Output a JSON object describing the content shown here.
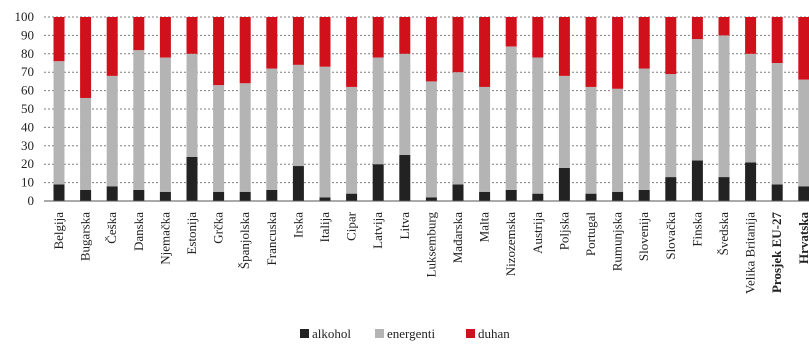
{
  "colors": {
    "alkohol": "#222222",
    "energenti": "#b4b4b4",
    "duhan": "#d0101a",
    "grid": "#7f7f7f"
  },
  "chart_data": {
    "type": "bar",
    "stacked": true,
    "title": "",
    "xlabel": "",
    "ylabel": "",
    "ylim": [
      0,
      100
    ],
    "yticks": [
      0,
      10,
      20,
      30,
      40,
      50,
      60,
      70,
      80,
      90,
      100
    ],
    "grid": true,
    "legend_position": "bottom",
    "categories": [
      "Belgija",
      "Bugarska",
      "Češka",
      "Danska",
      "Njemačka",
      "Estonija",
      "Grčka",
      "Španjolska",
      "Francuska",
      "Irska",
      "Italija",
      "Cipar",
      "Latvija",
      "Litva",
      "Luksemburg",
      "Mađarska",
      "Malta",
      "Nizozemska",
      "Austrija",
      "Poljska",
      "Portugal",
      "Rumunjska",
      "Slovenija",
      "Slovačka",
      "Finska",
      "Švedska",
      "Velika Britanija",
      "Prosjek EU-27",
      "Hrvatska"
    ],
    "bold_categories": [
      "Prosjek EU-27",
      "Hrvatska"
    ],
    "series": [
      {
        "name": "alkohol",
        "values": [
          9,
          6,
          8,
          6,
          5,
          24,
          5,
          5,
          6,
          19,
          2,
          4,
          20,
          25,
          2,
          9,
          5,
          6,
          4,
          18,
          4,
          5,
          6,
          13,
          22,
          13,
          21,
          9,
          8
        ]
      },
      {
        "name": "energenti",
        "values": [
          67,
          50,
          60,
          76,
          73,
          56,
          58,
          59,
          66,
          55,
          71,
          58,
          58,
          55,
          63,
          61,
          57,
          78,
          74,
          50,
          58,
          56,
          66,
          56,
          66,
          77,
          59,
          66,
          58
        ]
      },
      {
        "name": "duhan",
        "values": [
          24,
          44,
          32,
          18,
          22,
          20,
          37,
          36,
          28,
          26,
          27,
          38,
          22,
          20,
          35,
          30,
          38,
          16,
          22,
          32,
          38,
          39,
          28,
          31,
          12,
          10,
          20,
          25,
          34
        ]
      }
    ]
  }
}
